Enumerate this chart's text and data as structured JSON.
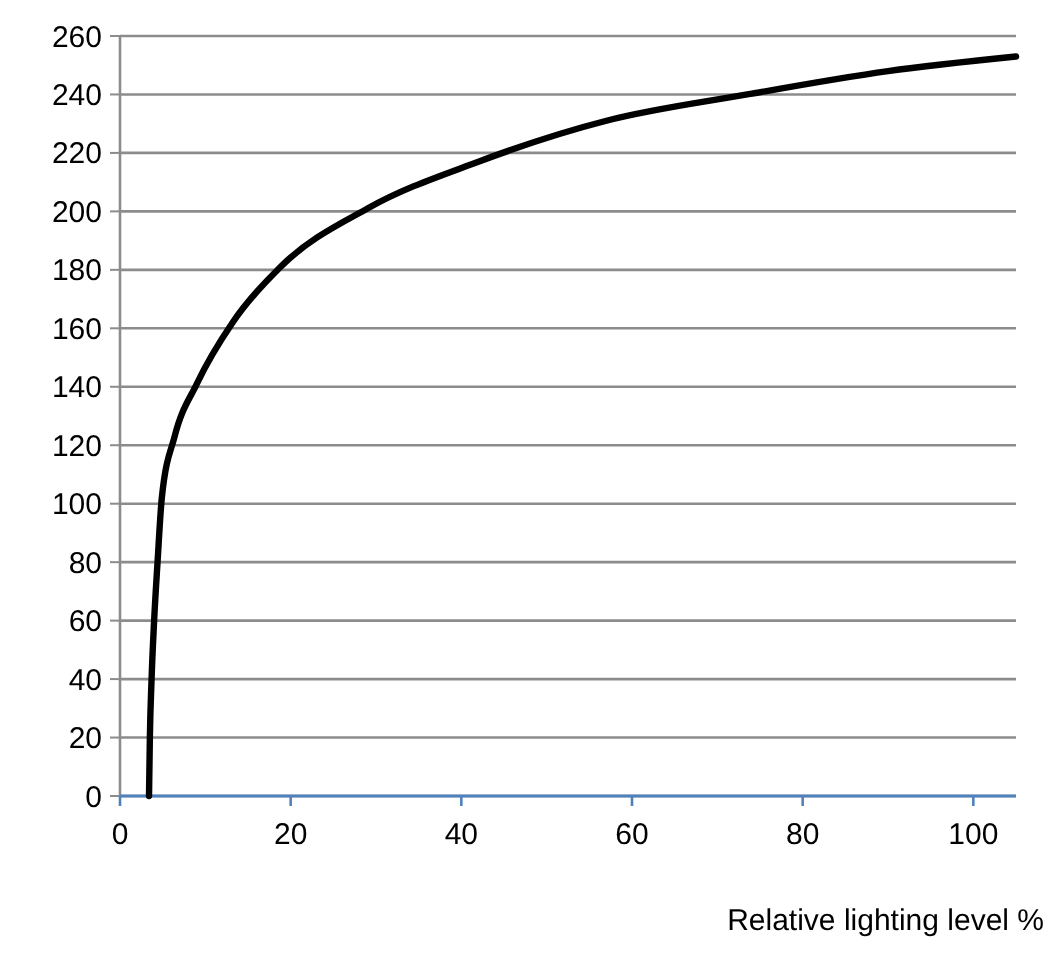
{
  "chart_data": {
    "type": "line",
    "xlabel": "Relative lighting level %",
    "x": [
      3.4,
      3.5,
      3.7,
      4.0,
      4.4,
      4.9,
      6.4,
      9.0,
      13.2,
      18.8,
      29.0,
      42,
      57,
      73.5,
      90,
      105
    ],
    "series": [
      {
        "color": "#000000",
        "values": [
          0,
          20,
          40,
          60,
          80,
          102,
          123,
          141,
          162,
          181,
          201,
          217,
          231,
          240,
          248,
          253
        ]
      }
    ],
    "xlim": [
      0,
      105
    ],
    "xticks": [
      0,
      20,
      40,
      60,
      80,
      100
    ],
    "ylim": [
      0,
      260
    ],
    "yticks": [
      0,
      20,
      40,
      60,
      80,
      100,
      120,
      140,
      160,
      180,
      200,
      220,
      240,
      260
    ],
    "grid": "y",
    "marker": "none",
    "line_style": "solid"
  }
}
